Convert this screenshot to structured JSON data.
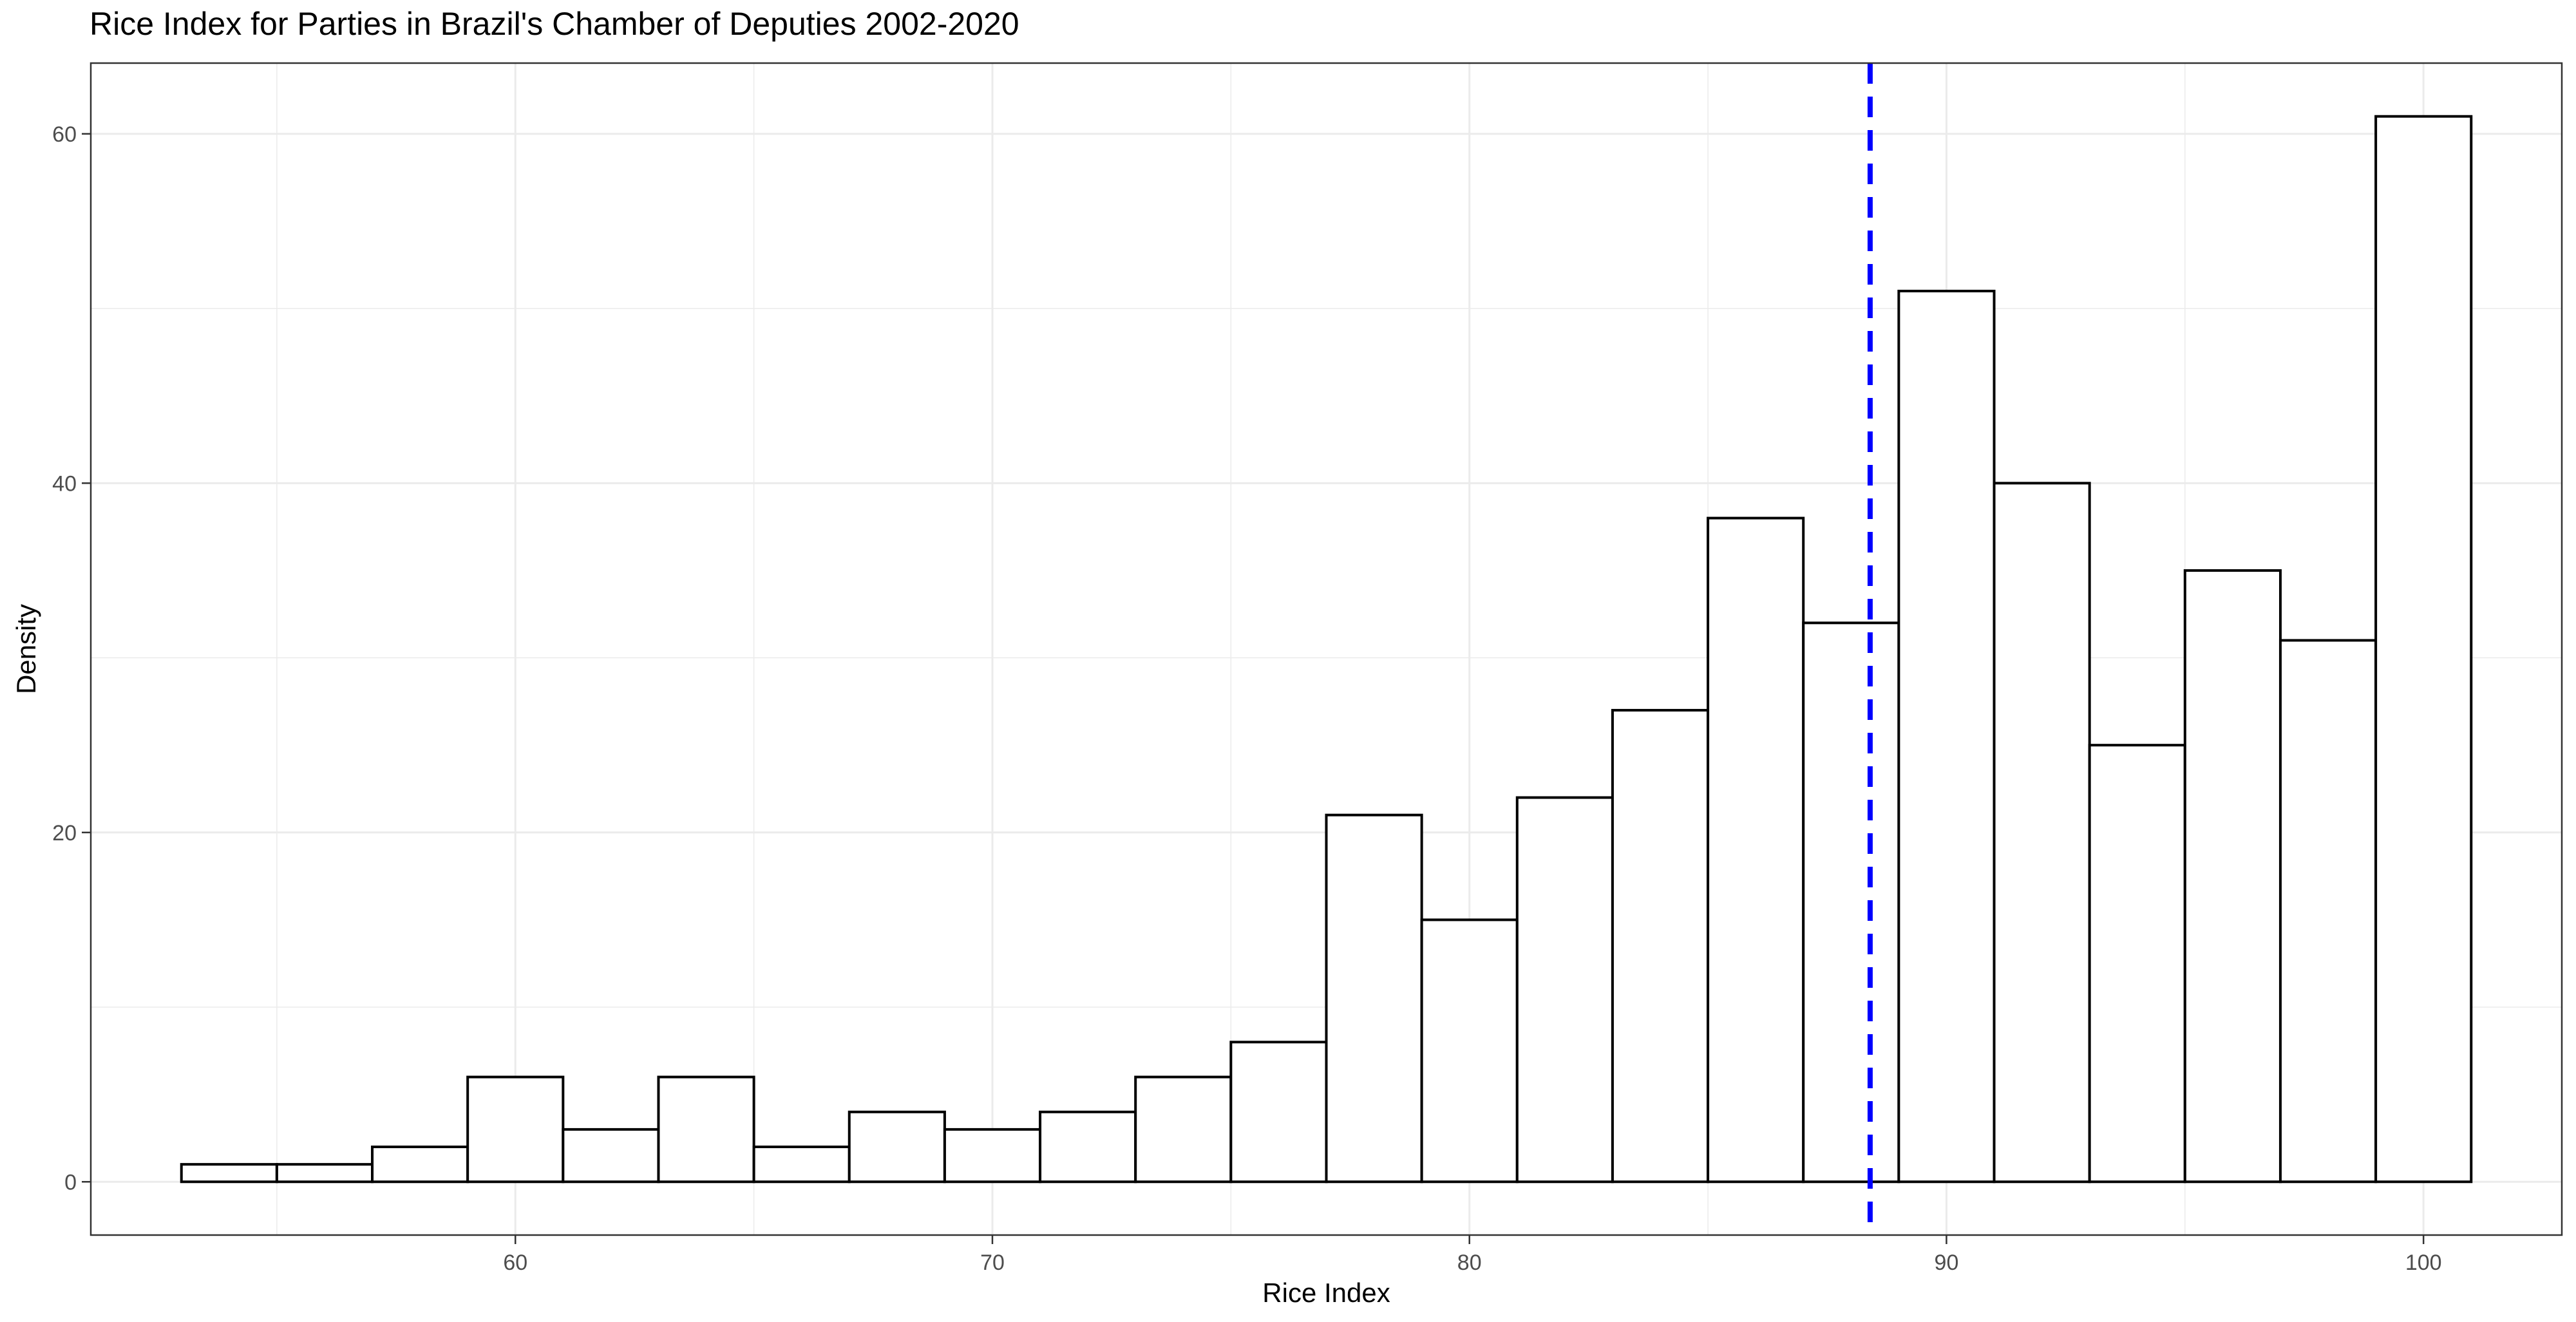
{
  "chart_data": {
    "type": "bar",
    "title": "Rice Index for Parties in Brazil's Chamber of Deputies 2002-2020",
    "xlabel": "Rice Index",
    "ylabel": "Density",
    "bin_width": 2,
    "bins": [
      {
        "x0": 53,
        "x1": 55,
        "value": 1
      },
      {
        "x0": 55,
        "x1": 57,
        "value": 1
      },
      {
        "x0": 57,
        "x1": 59,
        "value": 2
      },
      {
        "x0": 59,
        "x1": 61,
        "value": 6
      },
      {
        "x0": 61,
        "x1": 63,
        "value": 3
      },
      {
        "x0": 63,
        "x1": 65,
        "value": 6
      },
      {
        "x0": 65,
        "x1": 67,
        "value": 2
      },
      {
        "x0": 67,
        "x1": 69,
        "value": 4
      },
      {
        "x0": 69,
        "x1": 71,
        "value": 3
      },
      {
        "x0": 71,
        "x1": 73,
        "value": 4
      },
      {
        "x0": 73,
        "x1": 75,
        "value": 6
      },
      {
        "x0": 75,
        "x1": 77,
        "value": 8
      },
      {
        "x0": 77,
        "x1": 79,
        "value": 21
      },
      {
        "x0": 79,
        "x1": 81,
        "value": 15
      },
      {
        "x0": 81,
        "x1": 83,
        "value": 22
      },
      {
        "x0": 83,
        "x1": 85,
        "value": 27
      },
      {
        "x0": 85,
        "x1": 87,
        "value": 38
      },
      {
        "x0": 87,
        "x1": 89,
        "value": 32
      },
      {
        "x0": 89,
        "x1": 91,
        "value": 51
      },
      {
        "x0": 91,
        "x1": 93,
        "value": 40
      },
      {
        "x0": 93,
        "x1": 95,
        "value": 25
      },
      {
        "x0": 95,
        "x1": 97,
        "value": 35
      },
      {
        "x0": 97,
        "x1": 99,
        "value": 31
      },
      {
        "x0": 99,
        "x1": 101,
        "value": 61
      }
    ],
    "vline": {
      "x": 88.4,
      "color": "#0000ff",
      "style": "dashed"
    },
    "xlim": [
      51.1,
      102.9
    ],
    "ylim": [
      -3.05,
      64.05
    ],
    "x_ticks": [
      60,
      70,
      80,
      90,
      100
    ],
    "x_tick_labels": [
      "60",
      "70",
      "80",
      "90",
      "100"
    ],
    "y_ticks": [
      0,
      20,
      40,
      60
    ],
    "y_tick_labels": [
      "0",
      "20",
      "40",
      "60"
    ],
    "grid": true,
    "bar_fill": "#ffffff",
    "bar_stroke": "#000000",
    "grid_color": "#ebebeb"
  }
}
